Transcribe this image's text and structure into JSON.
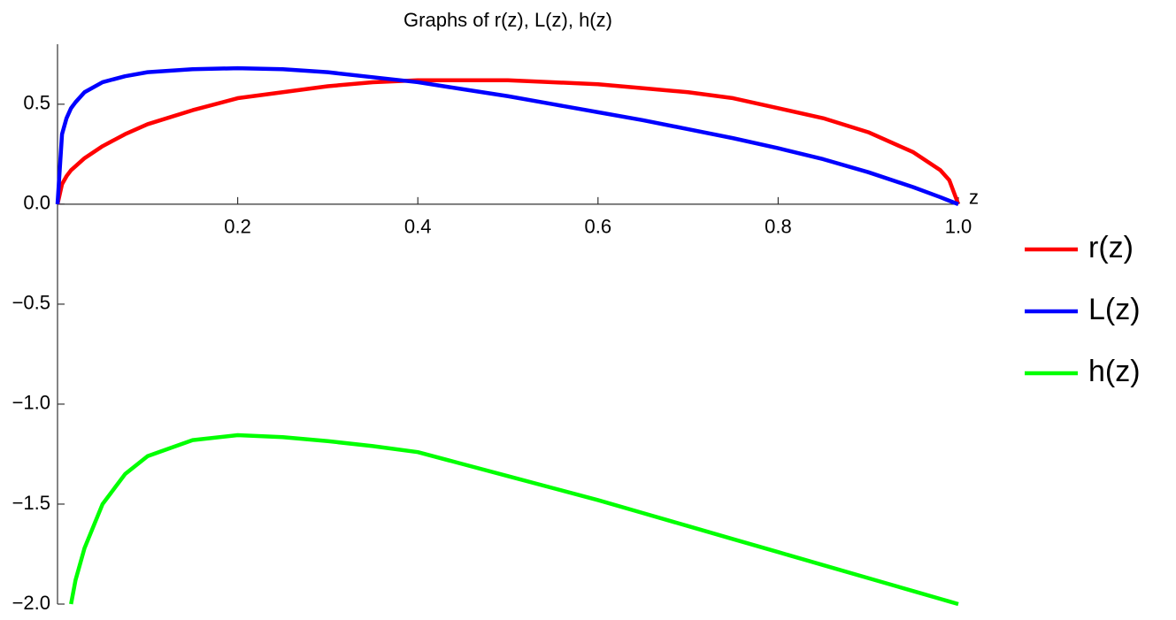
{
  "chart_data": {
    "type": "line",
    "title": "Graphs of r(z), L(z), h(z)",
    "xlabel": "z",
    "x": [
      0,
      0.005,
      0.01,
      0.015,
      0.02,
      0.03,
      0.05,
      0.075,
      0.1,
      0.15,
      0.2,
      0.25,
      0.3,
      0.35,
      0.4,
      0.45,
      0.5,
      0.55,
      0.6,
      0.65,
      0.7,
      0.75,
      0.8,
      0.85,
      0.9,
      0.95,
      0.98,
      0.99,
      1.0
    ],
    "series": [
      {
        "name": "r(z)",
        "color": "#ff0000",
        "values": [
          0,
          0.1,
          0.14,
          0.17,
          0.19,
          0.23,
          0.29,
          0.35,
          0.4,
          0.47,
          0.53,
          0.56,
          0.59,
          0.61,
          0.62,
          0.62,
          0.62,
          0.61,
          0.6,
          0.58,
          0.56,
          0.53,
          0.48,
          0.43,
          0.36,
          0.26,
          0.17,
          0.12,
          0
        ]
      },
      {
        "name": "L(z)",
        "color": "#0000ff",
        "values": [
          0,
          0.35,
          0.43,
          0.48,
          0.51,
          0.56,
          0.61,
          0.64,
          0.66,
          0.675,
          0.68,
          0.675,
          0.66,
          0.635,
          0.61,
          0.575,
          0.54,
          0.5,
          0.46,
          0.42,
          0.375,
          0.33,
          0.28,
          0.225,
          0.16,
          0.085,
          0.035,
          0.017,
          0
        ]
      },
      {
        "name": "h(z)",
        "color": "#00ff00",
        "values": [
          null,
          null,
          null,
          -2.0,
          -1.88,
          -1.72,
          -1.5,
          -1.35,
          -1.26,
          -1.18,
          -1.155,
          -1.165,
          -1.185,
          -1.21,
          -1.24,
          -1.3,
          -1.36,
          -1.42,
          -1.48,
          -1.545,
          -1.61,
          -1.675,
          -1.74,
          -1.805,
          -1.87,
          -1.935,
          -1.974,
          -1.987,
          -2.0
        ]
      }
    ],
    "xlim": [
      0,
      1
    ],
    "ylim": [
      -2,
      0.8
    ],
    "xticks": [
      0.2,
      0.4,
      0.6,
      0.8,
      {
        "value": 1,
        "label": "1.0"
      }
    ],
    "yticks": [
      {
        "value": -2,
        "label": "−2.0"
      },
      {
        "value": -1.5,
        "label": "−1.5"
      },
      {
        "value": -1,
        "label": "−1.0"
      },
      {
        "value": -0.5,
        "label": "−0.5"
      },
      {
        "value": 0,
        "label": "0.0"
      },
      0.5
    ],
    "legend": "right"
  }
}
